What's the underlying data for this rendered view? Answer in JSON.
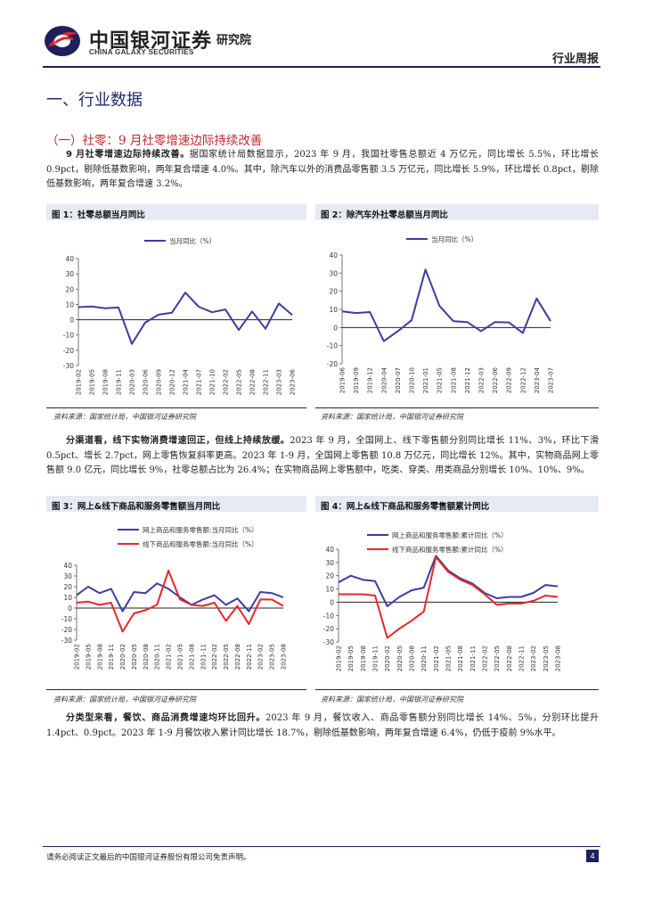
{
  "header": {
    "logo_cn": "中国银河证券",
    "logo_en": "CHINA GALAXY SECURITIES",
    "institute": "研究院",
    "report_type": "行业周报"
  },
  "section_title": "一、行业数据",
  "subsection_title": "（一）社零：9 月社零增速边际持续改善",
  "para1": {
    "lead": "9 月社零增速边际持续改善。",
    "text": "据国家统计局数据显示，2023 年 9 月，我国社零售总额近 4 万亿元，同比增长 5.5%，环比增长 0.9pct，剔除低基数影响，两年复合增速 4.0%。其中，除汽车以外的消费品零售额 3.5 万亿元，同比增长 5.9%，环比增长 0.8pct，剔除低基数影响，两年复合增速 3.2%。"
  },
  "para2": {
    "lead": "分渠道看，线下实物消费增速回正，但线上持续放缓。",
    "text": "2023 年 9 月，全国网上、线下零售额分别同比增长 11%、3%，环比下滑 0.5pct、增长 2.7pct，网上零售恢复斜率更高。2023 年 1-9 月，全国网上零售额 10.8 万亿元，同比增长 12%。其中，实物商品网上零售额 9.0 亿元，同比增长 9%，社零总额占比为 26.4%；在实物商品网上零售额中，吃类、穿类、用类商品分别增长 10%、10%、9%。"
  },
  "para3": {
    "lead": "分类型来看，餐饮、商品消费增速均环比回升。",
    "text": "2023 年 9 月，餐饮收入、商品零售额分别同比增长 14%、5%，分别环比提升 1.4pct、0.9pct。2023 年 1-9 月餐饮收入累计同比增长 18.7%，剔除低基数影响，两年复合增速 6.4%，仍低于疫前 9%水平。"
  },
  "source_text": "资料来源：国家统计局，中国银河证券研究院",
  "footer": {
    "disclaimer": "请务必阅读正文最后的中国银河证券股份有限公司免责声明。",
    "page": "4"
  },
  "colors": {
    "navy": "#1f1f5c",
    "line_blue": "#3d3d9e",
    "line_red": "#e8262a",
    "title_blue": "#1f2a6b",
    "sub_red": "#c0282a"
  },
  "chart_data": [
    {
      "type": "line",
      "title": "图 1：社零总额当月同比",
      "legend_position": "top",
      "ylim": [
        -30,
        40
      ],
      "yticks": [
        -30,
        -20,
        -10,
        0,
        10,
        20,
        30,
        40
      ],
      "x": [
        "2019-02",
        "2019-05",
        "2019-08",
        "2019-11",
        "2020-03",
        "2020-06",
        "2020-09",
        "2020-12",
        "2021-04",
        "2021-07",
        "2021-10",
        "2022-02",
        "2022-05",
        "2022-08",
        "2022-11",
        "2023-03",
        "2023-06"
      ],
      "series": [
        {
          "name": "当月同比（%）",
          "values": [
            8.2,
            8.6,
            7.5,
            8.0,
            -15.8,
            -1.8,
            3.3,
            4.6,
            17.7,
            8.5,
            4.9,
            6.7,
            -6.7,
            5.4,
            -5.9,
            10.6,
            3.1
          ]
        }
      ]
    },
    {
      "type": "line",
      "title": "图 2：除汽车外社零总额当月同比",
      "legend_position": "top",
      "ylim": [
        -20,
        40
      ],
      "yticks": [
        -20,
        -10,
        0,
        10,
        20,
        30,
        40
      ],
      "x": [
        "2019-06",
        "2019-09",
        "2019-12",
        "2020-04",
        "2020-07",
        "2020-10",
        "2021-01",
        "2021-05",
        "2021-08",
        "2021-12",
        "2022-03",
        "2022-06",
        "2022-09",
        "2022-12",
        "2023-04",
        "2023-07"
      ],
      "series": [
        {
          "name": "当月同比（%）",
          "values": [
            8.9,
            8.0,
            8.5,
            -7.5,
            -2.1,
            4.0,
            32.0,
            12.0,
            3.5,
            3.0,
            -2.0,
            3.0,
            2.8,
            -3.0,
            16.0,
            3.5
          ]
        }
      ]
    },
    {
      "type": "line",
      "title": "图 3：网上&线下商品和服务零售额当月同比",
      "legend_position": "top",
      "ylim": [
        -30,
        40
      ],
      "yticks": [
        -30,
        -20,
        -10,
        0,
        10,
        20,
        30,
        40
      ],
      "x": [
        "2019-02",
        "2019-05",
        "2019-08",
        "2019-11",
        "2020-02",
        "2020-05",
        "2020-08",
        "2020-11",
        "2021-02",
        "2021-05",
        "2021-08",
        "2021-11",
        "2022-02",
        "2022-05",
        "2022-08",
        "2022-11",
        "2023-02",
        "2023-05",
        "2023-08"
      ],
      "series": [
        {
          "name": "网上商品和服务零售额:当月同比（%）",
          "values": [
            12,
            20,
            14,
            18,
            -3,
            15,
            14,
            23,
            18,
            10,
            3,
            8,
            12,
            3,
            9,
            -3,
            15,
            14,
            10
          ]
        },
        {
          "name": "线下商品和服务零售额:当月同比（%）",
          "values": [
            5,
            6,
            3,
            5,
            -22,
            -5,
            -2,
            3,
            35,
            8,
            3,
            2,
            5,
            -12,
            2,
            -15,
            8,
            8,
            2
          ]
        }
      ]
    },
    {
      "type": "line",
      "title": "图 4：网上&线下商品和服务零售额累计同比",
      "legend_position": "top",
      "ylim": [
        -30,
        40
      ],
      "yticks": [
        -30,
        -20,
        -10,
        0,
        10,
        20,
        30,
        40
      ],
      "x": [
        "2019-02",
        "2019-05",
        "2019-08",
        "2019-11",
        "2020-02",
        "2020-05",
        "2020-08",
        "2020-11",
        "2021-02",
        "2021-05",
        "2021-08",
        "2021-11",
        "2022-02",
        "2022-05",
        "2022-08",
        "2022-11",
        "2023-02",
        "2023-05",
        "2023-08"
      ],
      "series": [
        {
          "name": "网上商品和服务零售额:累计同比（%）",
          "values": [
            15,
            20,
            17,
            16,
            -3,
            4,
            9,
            11,
            35,
            24,
            18,
            14,
            7,
            3,
            4,
            4,
            7,
            13,
            12
          ]
        },
        {
          "name": "线下商品和服务零售额:累计同比（%）",
          "values": [
            6,
            6,
            6,
            5,
            -27,
            -20,
            -14,
            -7,
            34,
            23,
            17,
            13,
            6,
            -2,
            -1,
            -1,
            1,
            5,
            4
          ]
        }
      ]
    }
  ]
}
